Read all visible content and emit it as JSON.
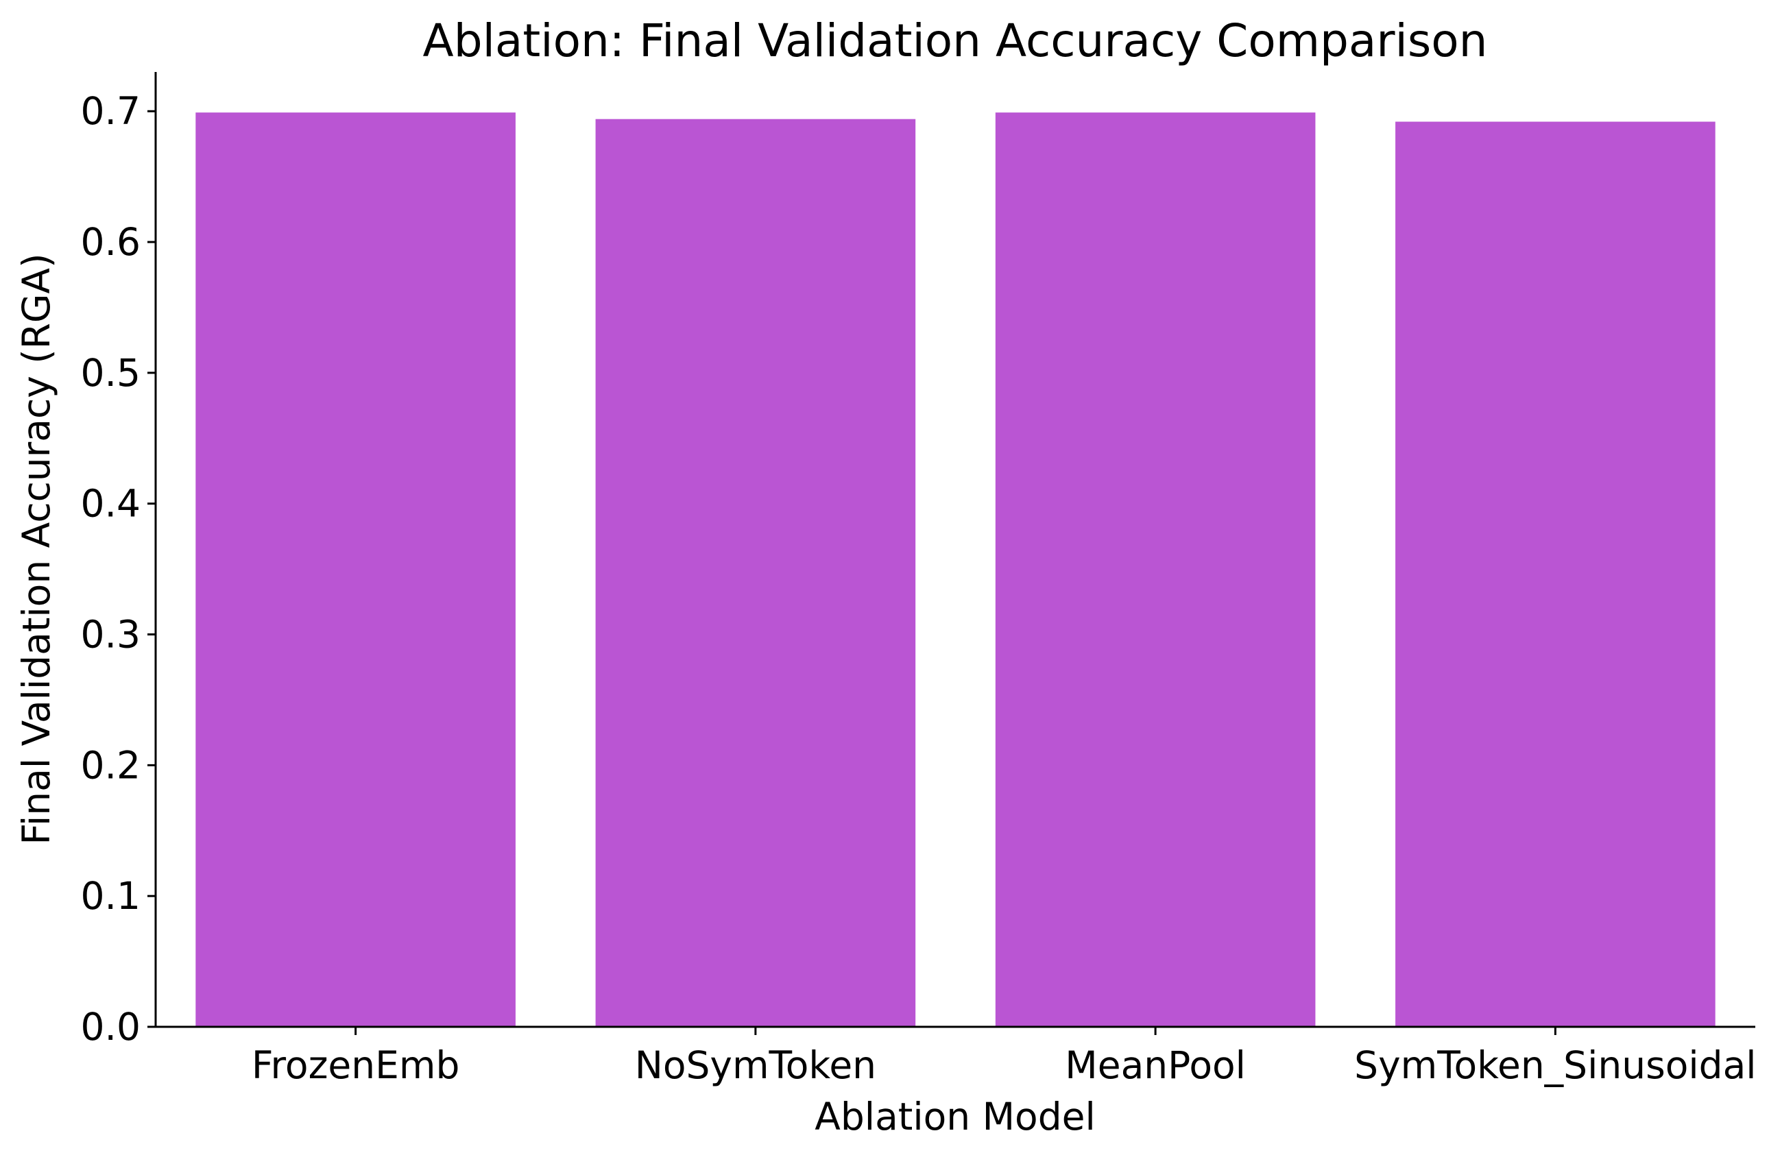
{
  "chart_data": {
    "type": "bar",
    "title": "Ablation: Final Validation Accuracy Comparison",
    "xlabel": "Ablation Model",
    "ylabel": "Final Validation Accuracy (RGA)",
    "categories": [
      "FrozenEmb",
      "NoSymToken",
      "MeanPool",
      "SymToken_Sinusoidal"
    ],
    "values": [
      0.699,
      0.694,
      0.699,
      0.692
    ],
    "ylim": [
      0,
      0.73
    ],
    "yticks": [
      0.0,
      0.1,
      0.2,
      0.3,
      0.4,
      0.5,
      0.6,
      0.7
    ],
    "ytick_labels": [
      "0.0",
      "0.1",
      "0.2",
      "0.3",
      "0.4",
      "0.5",
      "0.6",
      "0.7"
    ],
    "bar_color": "#ba55d3",
    "grid": false,
    "legend": "none"
  }
}
